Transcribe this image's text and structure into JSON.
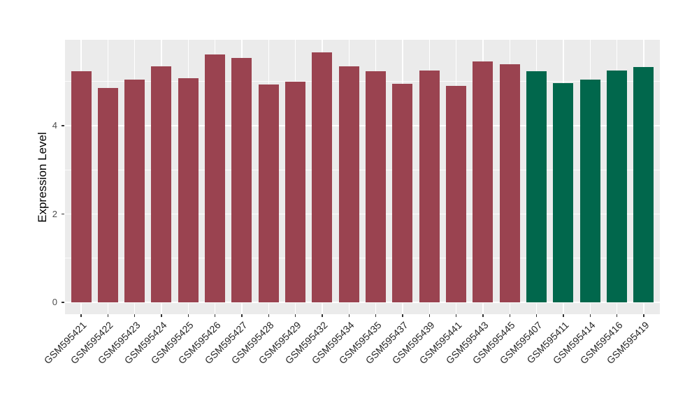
{
  "figure": {
    "background_color": "#FFFFFF",
    "title": ""
  },
  "chart_data": {
    "type": "bar",
    "title": "",
    "xlabel": "",
    "ylabel": "Expression Level",
    "categories": [
      "GSM595421",
      "GSM595422",
      "GSM595423",
      "GSM595424",
      "GSM595425",
      "GSM595426",
      "GSM595427",
      "GSM595428",
      "GSM595429",
      "GSM595432",
      "GSM595434",
      "GSM595435",
      "GSM595437",
      "GSM595439",
      "GSM595441",
      "GSM595443",
      "GSM595445",
      "GSM595407",
      "GSM595411",
      "GSM595414",
      "GSM595416",
      "GSM595419"
    ],
    "values": [
      5.24,
      4.86,
      5.04,
      5.34,
      5.08,
      5.62,
      5.53,
      4.93,
      4.99,
      5.66,
      5.35,
      5.24,
      4.95,
      5.25,
      4.9,
      5.45,
      5.39,
      5.24,
      4.97,
      5.04,
      5.25,
      5.33
    ],
    "groups": [
      "red",
      "red",
      "red",
      "red",
      "red",
      "red",
      "red",
      "red",
      "red",
      "red",
      "red",
      "red",
      "red",
      "red",
      "red",
      "red",
      "red",
      "green",
      "green",
      "green",
      "green",
      "green"
    ],
    "group_colors": {
      "red": "#9A4350",
      "green": "#01674C"
    },
    "ylim": [
      0,
      5.95
    ],
    "y_ticks": [
      0,
      2,
      4
    ],
    "y_tick_labels": [
      "0",
      "2",
      "4"
    ],
    "y_minor_ticks": [
      1,
      3,
      5
    ],
    "x_label_angle": 45,
    "grid": "on",
    "legend_position": "none",
    "panel_background": "#EBEBEB",
    "grid_color": "#FFFFFF",
    "axis_text_color": "#4D4D4D",
    "x_axis_text_color": "#262626"
  }
}
